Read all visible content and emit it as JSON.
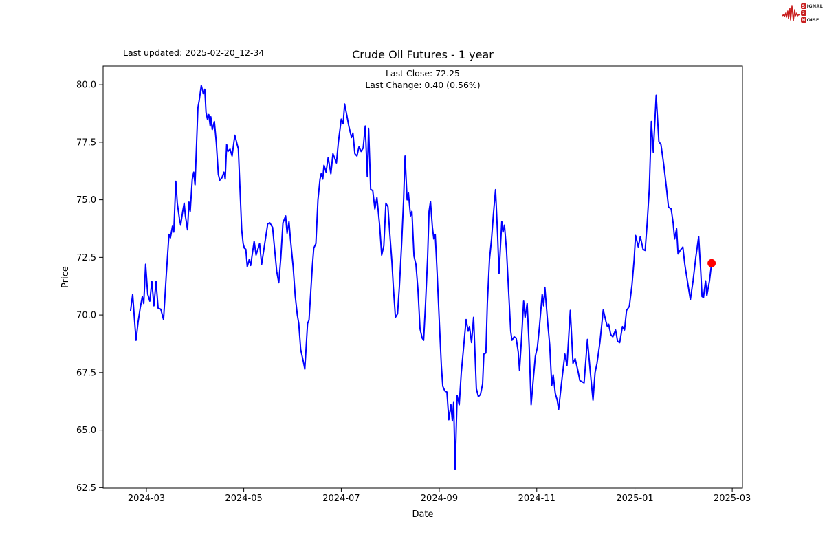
{
  "header": {
    "last_updated": "Last updated: 2025-02-20_12-34"
  },
  "branding": {
    "logo_signal_initial": "S",
    "logo_signal_rest": "IGNAL",
    "logo_two": "2",
    "logo_noise_initial": "N",
    "logo_noise_rest": "OISE",
    "logo_red": "#c81e1e"
  },
  "chart_data": {
    "type": "line",
    "title": "Crude Oil Futures - 1 year",
    "annotation_line1": "Last Close: 72.25",
    "annotation_line2": "Last Change: 0.40 (0.56%)",
    "last_close": 72.25,
    "last_change": 0.4,
    "last_change_pct": 0.56,
    "xlabel": "Date",
    "ylabel": "Price",
    "x_unit": "days since first point (2024-02-20)",
    "xlim": [
      -17.2,
      382.8
    ],
    "ylim": [
      62.48,
      80.81
    ],
    "grid": false,
    "legend": "none",
    "line_color": "#0000ff",
    "last_point_color": "#ff0000",
    "yticks": [
      62.5,
      65.0,
      67.5,
      70.0,
      72.5,
      75.0,
      77.5,
      80.0
    ],
    "xticks": [
      {
        "t": 9.9,
        "label": "2024-03"
      },
      {
        "t": 70.8,
        "label": "2024-05"
      },
      {
        "t": 131.8,
        "label": "2024-07"
      },
      {
        "t": 193.1,
        "label": "2024-09"
      },
      {
        "t": 254.1,
        "label": "2024-11"
      },
      {
        "t": 315.5,
        "label": "2025-01"
      },
      {
        "t": 376.4,
        "label": "2025-03"
      }
    ],
    "series": [
      {
        "name": "Crude Oil Futures price",
        "points": [
          [
            0,
            70.2
          ],
          [
            1.3,
            70.9
          ],
          [
            2.1,
            70.1
          ],
          [
            3.4,
            68.9
          ],
          [
            4.7,
            69.7
          ],
          [
            6,
            70.3
          ],
          [
            7.3,
            70.8
          ],
          [
            8.2,
            70.5
          ],
          [
            9.4,
            72.2
          ],
          [
            10.7,
            70.9
          ],
          [
            12,
            70.6
          ],
          [
            13.3,
            71.45
          ],
          [
            14.6,
            70.4
          ],
          [
            15.9,
            71.45
          ],
          [
            17.2,
            70.3
          ],
          [
            18.9,
            70.25
          ],
          [
            20.6,
            69.8
          ],
          [
            22.3,
            71.7
          ],
          [
            24,
            73.5
          ],
          [
            24.9,
            73.35
          ],
          [
            26.2,
            73.85
          ],
          [
            27,
            73.6
          ],
          [
            28.3,
            75.8
          ],
          [
            29.2,
            74.85
          ],
          [
            30.5,
            74.2
          ],
          [
            31.3,
            73.9
          ],
          [
            32.6,
            74.5
          ],
          [
            33.5,
            74.85
          ],
          [
            34.3,
            74.3
          ],
          [
            35.6,
            73.7
          ],
          [
            36.5,
            74.9
          ],
          [
            37.3,
            74.5
          ],
          [
            38.6,
            75.9
          ],
          [
            39.5,
            76.2
          ],
          [
            40.3,
            75.65
          ],
          [
            42.1,
            79.0
          ],
          [
            42.9,
            79.3
          ],
          [
            44.2,
            79.97
          ],
          [
            45.5,
            79.6
          ],
          [
            46.4,
            79.8
          ],
          [
            47.2,
            78.8
          ],
          [
            48.1,
            78.5
          ],
          [
            48.9,
            78.7
          ],
          [
            49.8,
            78.2
          ],
          [
            50.2,
            78.6
          ],
          [
            51.1,
            78.05
          ],
          [
            52.4,
            78.4
          ],
          [
            53.6,
            77.5
          ],
          [
            54.9,
            76.1
          ],
          [
            55.8,
            75.85
          ],
          [
            57.1,
            75.95
          ],
          [
            58.4,
            76.2
          ],
          [
            59.2,
            75.9
          ],
          [
            60.1,
            77.4
          ],
          [
            60.9,
            77.1
          ],
          [
            62.2,
            77.2
          ],
          [
            63.5,
            76.9
          ],
          [
            65.2,
            77.8
          ],
          [
            67.4,
            77.2
          ],
          [
            69.5,
            73.7
          ],
          [
            70.4,
            73.1
          ],
          [
            71.2,
            72.9
          ],
          [
            72.1,
            72.85
          ],
          [
            73,
            72.1
          ],
          [
            74.2,
            72.4
          ],
          [
            75.1,
            72.15
          ],
          [
            77.3,
            73.2
          ],
          [
            78.5,
            72.6
          ],
          [
            80.7,
            73.1
          ],
          [
            82,
            72.2
          ],
          [
            83.7,
            73.0
          ],
          [
            85.8,
            73.96
          ],
          [
            87.1,
            74.0
          ],
          [
            88.8,
            73.8
          ],
          [
            90.1,
            72.85
          ],
          [
            91.4,
            71.9
          ],
          [
            92.7,
            71.4
          ],
          [
            94,
            72.5
          ],
          [
            95.3,
            74.0
          ],
          [
            97,
            74.3
          ],
          [
            97.9,
            73.55
          ],
          [
            99.1,
            74.05
          ],
          [
            100,
            73.3
          ],
          [
            101.7,
            72.1
          ],
          [
            103,
            70.8
          ],
          [
            104.3,
            70.0
          ],
          [
            105.2,
            69.63
          ],
          [
            106.4,
            68.5
          ],
          [
            108.2,
            67.93
          ],
          [
            109,
            67.65
          ],
          [
            110.7,
            69.63
          ],
          [
            111.6,
            69.78
          ],
          [
            113.7,
            72.1
          ],
          [
            114.6,
            72.9
          ],
          [
            115.9,
            73.1
          ],
          [
            117.2,
            75.0
          ],
          [
            118.5,
            75.9
          ],
          [
            119.3,
            76.15
          ],
          [
            120.2,
            75.9
          ],
          [
            121,
            76.5
          ],
          [
            122.3,
            76.2
          ],
          [
            123.6,
            76.84
          ],
          [
            125.3,
            76.13
          ],
          [
            126.6,
            77.0
          ],
          [
            128.8,
            76.6
          ],
          [
            130,
            77.5
          ],
          [
            131.8,
            78.5
          ],
          [
            133,
            78.3
          ],
          [
            133.9,
            79.16
          ],
          [
            135.2,
            78.7
          ],
          [
            136.5,
            78.2
          ],
          [
            138.2,
            77.7
          ],
          [
            139.1,
            77.9
          ],
          [
            140.3,
            77.0
          ],
          [
            141.6,
            76.9
          ],
          [
            142.9,
            77.3
          ],
          [
            144.2,
            77.1
          ],
          [
            145.5,
            77.25
          ],
          [
            146.8,
            78.2
          ],
          [
            148.1,
            76.0
          ],
          [
            148.9,
            78.1
          ],
          [
            150.2,
            75.45
          ],
          [
            151.5,
            75.4
          ],
          [
            152.8,
            74.6
          ],
          [
            154.1,
            75.1
          ],
          [
            155.8,
            73.9
          ],
          [
            157.1,
            72.6
          ],
          [
            158.4,
            73.0
          ],
          [
            159.7,
            74.85
          ],
          [
            161,
            74.7
          ],
          [
            162.2,
            73.5
          ],
          [
            163.5,
            72.3
          ],
          [
            164.4,
            71.2
          ],
          [
            165.7,
            69.9
          ],
          [
            167,
            70.05
          ],
          [
            168.2,
            71.3
          ],
          [
            169.5,
            73.0
          ],
          [
            170.8,
            75.0
          ],
          [
            171.7,
            76.9
          ],
          [
            173,
            75.0
          ],
          [
            173.8,
            75.3
          ],
          [
            175.1,
            74.3
          ],
          [
            176,
            74.5
          ],
          [
            177.3,
            72.55
          ],
          [
            178.5,
            72.2
          ],
          [
            179.8,
            71.1
          ],
          [
            181.1,
            69.4
          ],
          [
            182.4,
            69.0
          ],
          [
            183.3,
            68.9
          ],
          [
            184.5,
            70.5
          ],
          [
            185.8,
            72.5
          ],
          [
            186.7,
            74.5
          ],
          [
            187.6,
            74.93
          ],
          [
            188.8,
            73.8
          ],
          [
            189.7,
            73.3
          ],
          [
            190.6,
            73.5
          ],
          [
            191.8,
            71.8
          ],
          [
            193.1,
            69.8
          ],
          [
            194.4,
            67.8
          ],
          [
            195.3,
            66.9
          ],
          [
            196.6,
            66.7
          ],
          [
            197.9,
            66.65
          ],
          [
            199.1,
            65.45
          ],
          [
            200.4,
            66.1
          ],
          [
            201.3,
            65.4
          ],
          [
            202.1,
            66.2
          ],
          [
            203,
            63.3
          ],
          [
            204.3,
            66.5
          ],
          [
            205.6,
            66.1
          ],
          [
            206.9,
            67.5
          ],
          [
            208.2,
            68.5
          ],
          [
            209.9,
            69.8
          ],
          [
            211.2,
            69.3
          ],
          [
            212,
            69.5
          ],
          [
            213.3,
            68.8
          ],
          [
            214.6,
            69.9
          ],
          [
            216.3,
            66.8
          ],
          [
            217.6,
            66.45
          ],
          [
            218.9,
            66.55
          ],
          [
            220.2,
            67.0
          ],
          [
            221,
            68.3
          ],
          [
            222.3,
            68.35
          ],
          [
            223.2,
            70.5
          ],
          [
            224.5,
            72.4
          ],
          [
            225.8,
            73.3
          ],
          [
            227,
            74.4
          ],
          [
            228.3,
            75.44
          ],
          [
            229.6,
            73.5
          ],
          [
            230.5,
            71.8
          ],
          [
            232.2,
            74.05
          ],
          [
            233,
            73.6
          ],
          [
            233.9,
            73.9
          ],
          [
            235.2,
            72.8
          ],
          [
            236.5,
            71.0
          ],
          [
            237.8,
            69.3
          ],
          [
            238.6,
            68.9
          ],
          [
            239.9,
            69.05
          ],
          [
            241.2,
            69.0
          ],
          [
            242.5,
            68.4
          ],
          [
            243.3,
            67.6
          ],
          [
            244.6,
            69.0
          ],
          [
            245.9,
            70.6
          ],
          [
            246.8,
            69.9
          ],
          [
            248.1,
            70.5
          ],
          [
            249.4,
            68.6
          ],
          [
            250.6,
            66.1
          ],
          [
            251.9,
            67.2
          ],
          [
            253.2,
            68.2
          ],
          [
            254.5,
            68.6
          ],
          [
            255.8,
            69.5
          ],
          [
            257.5,
            70.9
          ],
          [
            258.4,
            70.4
          ],
          [
            259.2,
            71.2
          ],
          [
            260.9,
            69.7
          ],
          [
            262.2,
            68.7
          ],
          [
            263.5,
            66.95
          ],
          [
            264.4,
            67.4
          ],
          [
            265.7,
            66.6
          ],
          [
            266.9,
            66.3
          ],
          [
            267.8,
            65.9
          ],
          [
            269.5,
            67.0
          ],
          [
            271.7,
            68.3
          ],
          [
            273,
            67.8
          ],
          [
            275.1,
            70.2
          ],
          [
            276.8,
            67.9
          ],
          [
            278.1,
            68.1
          ],
          [
            279.8,
            67.6
          ],
          [
            281.1,
            67.15
          ],
          [
            282.4,
            67.1
          ],
          [
            283.7,
            67.05
          ],
          [
            285.8,
            68.94
          ],
          [
            287.6,
            67.5
          ],
          [
            289.3,
            66.3
          ],
          [
            290.6,
            67.5
          ],
          [
            291.8,
            67.9
          ],
          [
            293.6,
            68.8
          ],
          [
            295.7,
            70.22
          ],
          [
            297.4,
            69.72
          ],
          [
            298.3,
            69.5
          ],
          [
            299.1,
            69.6
          ],
          [
            300.4,
            69.15
          ],
          [
            301.7,
            69.05
          ],
          [
            303.4,
            69.35
          ],
          [
            304.7,
            68.85
          ],
          [
            306,
            68.8
          ],
          [
            307.7,
            69.5
          ],
          [
            309,
            69.35
          ],
          [
            310.3,
            70.2
          ],
          [
            312,
            70.37
          ],
          [
            313.7,
            71.3
          ],
          [
            315,
            72.4
          ],
          [
            315.9,
            73.45
          ],
          [
            317.6,
            72.96
          ],
          [
            318.9,
            73.4
          ],
          [
            320.6,
            72.85
          ],
          [
            321.9,
            72.8
          ],
          [
            323.2,
            74.0
          ],
          [
            324.5,
            75.5
          ],
          [
            325.8,
            78.4
          ],
          [
            327,
            77.07
          ],
          [
            328.8,
            79.54
          ],
          [
            330.5,
            77.53
          ],
          [
            331.8,
            77.4
          ],
          [
            333.5,
            76.55
          ],
          [
            335.2,
            75.55
          ],
          [
            336.5,
            74.68
          ],
          [
            338.2,
            74.6
          ],
          [
            339.5,
            73.96
          ],
          [
            340.3,
            73.3
          ],
          [
            341.6,
            73.74
          ],
          [
            342.5,
            72.65
          ],
          [
            343.8,
            72.8
          ],
          [
            345.5,
            72.95
          ],
          [
            346.8,
            72.16
          ],
          [
            348.5,
            71.4
          ],
          [
            350.2,
            70.67
          ],
          [
            351.9,
            71.5
          ],
          [
            353.6,
            72.5
          ],
          [
            355.4,
            73.4
          ],
          [
            356.7,
            71.9
          ],
          [
            357.5,
            70.8
          ],
          [
            358.4,
            70.76
          ],
          [
            359.7,
            71.48
          ],
          [
            360.5,
            70.84
          ],
          [
            362.2,
            71.5
          ],
          [
            363.5,
            72.25
          ]
        ]
      }
    ]
  }
}
